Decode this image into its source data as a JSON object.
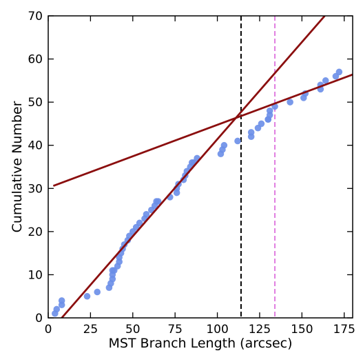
{
  "chart_data": {
    "type": "scatter",
    "xlabel": "MST Branch Length (arcsec)",
    "ylabel": "Cumulative Number",
    "xlim": [
      0,
      180
    ],
    "ylim": [
      0,
      70
    ],
    "xticks": [
      "0",
      "25",
      "50",
      "75",
      "100",
      "125",
      "150",
      "175"
    ],
    "xtick_values": [
      0,
      25,
      50,
      75,
      100,
      125,
      150,
      175
    ],
    "yticks": [
      "0",
      "10",
      "20",
      "30",
      "40",
      "50",
      "60",
      "70"
    ],
    "ytick_values": [
      0,
      10,
      20,
      30,
      40,
      50,
      60,
      70
    ],
    "ticks_on_all_sides": true,
    "tick_direction": "in",
    "grid": false,
    "series": [
      {
        "kind": "points",
        "color": "#6a8ee8",
        "x": [
          4,
          5,
          8,
          8,
          23,
          29,
          36,
          37,
          38,
          38,
          38,
          39,
          41,
          42,
          42,
          43,
          44,
          45,
          47,
          48,
          50,
          52,
          54,
          57,
          58,
          61,
          63,
          64,
          65,
          72,
          76,
          76,
          77,
          80,
          81,
          82,
          84,
          85,
          86,
          88,
          102,
          103,
          104,
          112,
          120,
          120,
          124,
          126,
          130,
          130,
          131,
          131,
          134,
          143,
          151,
          152,
          161,
          161,
          164,
          170,
          172
        ],
        "y": [
          1,
          2,
          3,
          4,
          5,
          6,
          7,
          8,
          9,
          10,
          11,
          11,
          12,
          13,
          14,
          15,
          16,
          17,
          18,
          19,
          20,
          21,
          22,
          23,
          24,
          25,
          26,
          27,
          27,
          28,
          29,
          30,
          31,
          32,
          33,
          34,
          35,
          36,
          36,
          37,
          38,
          39,
          40,
          41,
          42,
          43,
          44,
          45,
          46,
          46,
          47,
          48,
          49,
          50,
          51,
          52,
          53,
          54,
          55,
          56,
          57
        ]
      },
      {
        "kind": "line",
        "color": "#8b0f0f",
        "x": [
          8,
          163.5
        ],
        "y": [
          0,
          70
        ]
      },
      {
        "kind": "line",
        "color": "#8b0f0f",
        "x": [
          3,
          180
        ],
        "y": [
          30.6,
          56.4
        ]
      }
    ],
    "vlines": [
      {
        "x": 114,
        "color": "#000000",
        "style": "dashed"
      },
      {
        "x": 134,
        "color": "#e07ee0",
        "style": "dashed"
      }
    ]
  }
}
